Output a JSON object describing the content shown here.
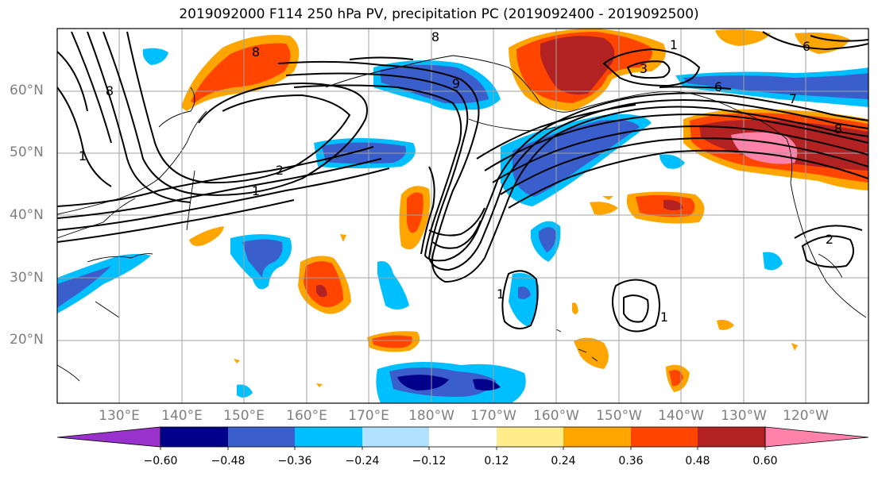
{
  "title": "2019092000 F114 250 hPa PV, precipitation PC (2019092400 - 2019092500)",
  "map": {
    "lat_labels": [
      "60°N",
      "50°N",
      "40°N",
      "30°N",
      "20°N"
    ],
    "lon_labels": [
      "130°E",
      "140°E",
      "150°E",
      "160°E",
      "170°E",
      "180°W",
      "170°W",
      "160°W",
      "150°W",
      "140°W",
      "130°W",
      "120°W"
    ],
    "pv_contour_labels": [
      "8",
      "9",
      "8",
      "1",
      "3",
      "6",
      "7",
      "8",
      "8",
      "1",
      "2",
      "1",
      "1",
      "1",
      "2",
      "6"
    ],
    "gridlines": true
  },
  "colorbar": {
    "tick_labels": [
      "−0.60",
      "−0.48",
      "−0.36",
      "−0.24",
      "−0.12",
      "0.12",
      "0.24",
      "0.36",
      "0.48",
      "0.60"
    ],
    "colors": [
      "#9932cc",
      "#00008b",
      "#3a5fcd",
      "#00bfff",
      "#b0e2ff",
      "#ffffff",
      "#ffec8b",
      "#ffa500",
      "#ff4500",
      "#b22222",
      "#ff82ab"
    ],
    "extend": "both"
  }
}
